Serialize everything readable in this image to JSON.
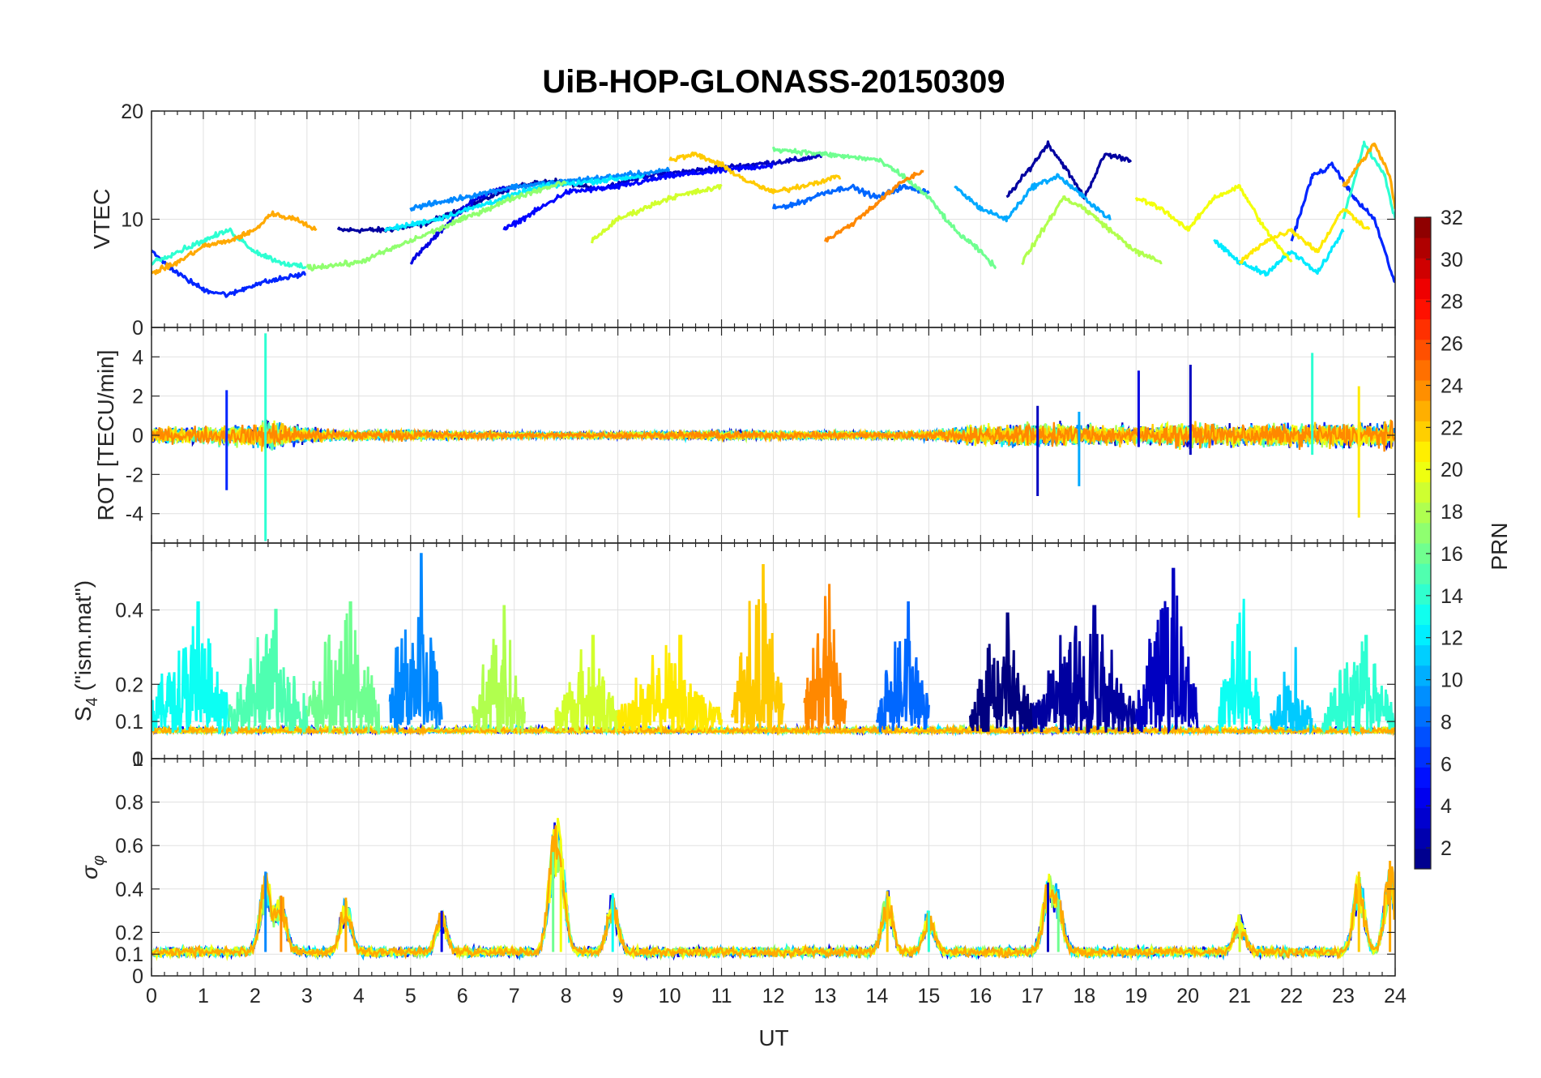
{
  "chart_data": {
    "type": "line",
    "title": "UiB-HOP-GLONASS-20150309",
    "xlabel": "UT",
    "xlim": [
      0,
      24
    ],
    "xticks": [
      "0",
      "1",
      "2",
      "3",
      "4",
      "5",
      "6",
      "7",
      "8",
      "9",
      "10",
      "11",
      "12",
      "13",
      "14",
      "15",
      "16",
      "17",
      "18",
      "19",
      "20",
      "21",
      "22",
      "23",
      "24"
    ],
    "colorbar": {
      "label": "PRN",
      "range": [
        1,
        32
      ],
      "ticks": [
        "2",
        "4",
        "6",
        "8",
        "10",
        "12",
        "14",
        "16",
        "18",
        "20",
        "22",
        "24",
        "26",
        "28",
        "30",
        "32"
      ],
      "colormap": "jet"
    },
    "panels": [
      {
        "name": "vtec",
        "ylabel": "VTEC",
        "ylim": [
          0,
          20
        ],
        "yticks": [
          "0",
          "10",
          "20"
        ],
        "series": [
          {
            "prn": 2,
            "x": [
              3.6,
              4.5,
              5.2,
              5.8,
              6.5,
              7.0,
              7.8,
              8.5
            ],
            "y": [
              9.0,
              9.0,
              9.5,
              10.5,
              12.0,
              13.0,
              13.5,
              13.0
            ]
          },
          {
            "prn": 3,
            "x": [
              8.8,
              9.5,
              10.5,
              11.5,
              12.5,
              13.0
            ],
            "y": [
              13.0,
              14.0,
              14.5,
              15.0,
              15.5,
              16.0
            ]
          },
          {
            "prn": 2,
            "x": [
              16.5,
              17.0,
              17.3,
              17.6,
              18.0,
              18.4,
              18.9
            ],
            "y": [
              12.0,
              15.0,
              17.0,
              15.0,
              12.0,
              16.0,
              15.5
            ]
          },
          {
            "prn": 4,
            "x": [
              5.0,
              5.5,
              6.0,
              6.5,
              7.0
            ],
            "y": [
              6.0,
              8.5,
              11.0,
              12.5,
              13.0
            ]
          },
          {
            "prn": 5,
            "x": [
              6.8,
              7.5,
              8.0,
              9.0,
              10.0,
              11.0,
              12.0
            ],
            "y": [
              9.0,
              11.0,
              12.5,
              13.0,
              14.0,
              14.5,
              15.0
            ]
          },
          {
            "prn": 6,
            "x": [
              0,
              0.5,
              1.0,
              1.5,
              2.0,
              2.5,
              3.0
            ],
            "y": [
              7.0,
              5.0,
              3.5,
              3.0,
              4.0,
              4.5,
              5.0
            ]
          },
          {
            "prn": 6,
            "x": [
              22.0,
              22.4,
              22.8,
              23.2,
              23.6,
              24.0
            ],
            "y": [
              8.0,
              14.0,
              15.0,
              12.0,
              10.0,
              4.0
            ]
          },
          {
            "prn": 8,
            "x": [
              12.0,
              12.5,
              13.0,
              13.5,
              14.0,
              14.5,
              15.0
            ],
            "y": [
              11.0,
              11.5,
              12.5,
              13.0,
              12.0,
              13.0,
              12.5
            ]
          },
          {
            "prn": 9,
            "x": [
              5.0,
              6.0,
              7.0,
              8.0,
              9.0,
              10.0
            ],
            "y": [
              11.0,
              12.0,
              13.0,
              13.5,
              14.0,
              14.5
            ]
          },
          {
            "prn": 10,
            "x": [
              15.5,
              16.0,
              16.5,
              17.0,
              17.5,
              18.0,
              18.5
            ],
            "y": [
              13.0,
              11.0,
              10.0,
              13.0,
              14.0,
              12.0,
              10.0
            ]
          },
          {
            "prn": 12,
            "x": [
              4.5,
              5.5,
              6.5,
              7.5,
              8.5,
              9.5
            ],
            "y": [
              9.0,
              10.0,
              11.5,
              13.0,
              13.5,
              14.0
            ]
          },
          {
            "prn": 12,
            "x": [
              20.5,
              21.0,
              21.5,
              22.0,
              22.5,
              23.0
            ],
            "y": [
              8.0,
              6.0,
              5.0,
              7.0,
              5.0,
              9.0
            ]
          },
          {
            "prn": 14,
            "x": [
              0,
              0.5,
              1.0,
              1.5,
              2.0,
              2.5,
              3.0
            ],
            "y": [
              6.0,
              7.0,
              8.0,
              9.0,
              7.0,
              6.0,
              5.5
            ]
          },
          {
            "prn": 14,
            "x": [
              23.0,
              23.4,
              23.8,
              24.0
            ],
            "y": [
              10.0,
              17.0,
              14.0,
              10.0
            ]
          },
          {
            "prn": 16,
            "x": [
              12.0,
              13.0,
              14.0,
              14.5,
              15.0,
              15.5,
              16.0,
              16.3
            ],
            "y": [
              16.5,
              16.0,
              15.5,
              14.0,
              12.0,
              9.0,
              7.0,
              5.5
            ]
          },
          {
            "prn": 17,
            "x": [
              3.0,
              4.0,
              5.0,
              6.0,
              7.0,
              8.0
            ],
            "y": [
              5.5,
              6.0,
              8.0,
              10.0,
              12.0,
              13.5
            ]
          },
          {
            "prn": 18,
            "x": [
              16.8,
              17.2,
              17.6,
              18.0,
              18.5,
              19.0,
              19.5
            ],
            "y": [
              6.0,
              9.0,
              12.0,
              11.0,
              9.0,
              7.0,
              6.0
            ]
          },
          {
            "prn": 19,
            "x": [
              8.5,
              9.0,
              9.5,
              10.0,
              10.5,
              11.0
            ],
            "y": [
              8.0,
              10.0,
              11.0,
              12.0,
              12.5,
              13.0
            ]
          },
          {
            "prn": 20,
            "x": [
              19.0,
              19.5,
              20.0,
              20.5,
              21.0,
              21.5,
              22.0
            ],
            "y": [
              12.0,
              11.0,
              9.0,
              12.0,
              13.0,
              9.0,
              6.0
            ]
          },
          {
            "prn": 21,
            "x": [
              21.0,
              21.5,
              22.0,
              22.5,
              23.0,
              23.5
            ],
            "y": [
              6.0,
              8.0,
              9.0,
              7.0,
              11.0,
              9.0
            ]
          },
          {
            "prn": 22,
            "x": [
              10.0,
              10.5,
              11.0,
              11.5,
              12.0,
              12.5,
              13.3
            ],
            "y": [
              15.5,
              16.0,
              15.0,
              13.5,
              12.5,
              13.0,
              14.0
            ]
          },
          {
            "prn": 23,
            "x": [
              0,
              0.5,
              1.0,
              1.5,
              2.0,
              2.3,
              2.8,
              3.2
            ],
            "y": [
              5.0,
              6.0,
              7.5,
              8.0,
              9.0,
              10.5,
              10.0,
              9.0
            ]
          },
          {
            "prn": 23,
            "x": [
              23.0,
              23.3,
              23.6,
              23.9,
              24.0
            ],
            "y": [
              13.0,
              15.0,
              17.0,
              14.0,
              11.0
            ]
          },
          {
            "prn": 24,
            "x": [
              13.0,
              13.5,
              14.0,
              14.5,
              14.9
            ],
            "y": [
              8.0,
              9.5,
              11.5,
              13.5,
              14.5
            ]
          }
        ]
      },
      {
        "name": "rot",
        "ylabel": "ROT [TECU/min]",
        "ylim": [
          -5.5,
          5.5
        ],
        "yticks": [
          "-4",
          "-2",
          "0",
          "2",
          "4"
        ],
        "envelope": {
          "x": [
            0,
            1,
            2,
            2.2,
            3,
            4,
            5,
            6,
            7,
            8,
            9,
            10,
            11,
            12,
            13,
            14,
            15,
            16,
            17,
            18,
            19,
            20,
            21,
            22,
            23,
            24
          ],
          "amp": [
            0.9,
            1.1,
            1.4,
            2.0,
            0.9,
            0.6,
            0.7,
            0.5,
            0.4,
            0.35,
            0.4,
            0.5,
            0.6,
            0.5,
            0.5,
            0.5,
            0.6,
            1.2,
            1.5,
            1.3,
            1.2,
            1.5,
            1.4,
            1.4,
            1.6,
            1.6
          ]
        },
        "spikes": [
          {
            "x": 2.2,
            "y": [
              -5.4,
              5.2
            ],
            "prn": 14
          },
          {
            "x": 1.45,
            "y": [
              -2.8,
              2.3
            ],
            "prn": 6
          },
          {
            "x": 17.1,
            "y": [
              -3.1,
              1.5
            ],
            "prn": 3
          },
          {
            "x": 19.05,
            "y": [
              -0.6,
              3.3
            ],
            "prn": 4
          },
          {
            "x": 20.05,
            "y": [
              -1.0,
              3.6
            ],
            "prn": 3
          },
          {
            "x": 23.3,
            "y": [
              -4.2,
              2.5
            ],
            "prn": 21
          },
          {
            "x": 22.4,
            "y": [
              -1.0,
              4.2
            ],
            "prn": 14
          },
          {
            "x": 17.9,
            "y": [
              -2.6,
              1.2
            ],
            "prn": 10
          }
        ]
      },
      {
        "name": "s4",
        "ylabel": "S4 (\"ism.mat\")",
        "ylabel_main": "S",
        "ylabel_sub": "4",
        "ylabel_rest": " (\"ism.mat\")",
        "ylim": [
          0,
          0.58
        ],
        "yticks": [
          "0",
          "0.1",
          "0.2",
          "0.4"
        ],
        "baseline": 0.07,
        "peaks": [
          {
            "x0": 0.0,
            "x1": 1.5,
            "max": 0.42,
            "prn": 13
          },
          {
            "x0": 1.5,
            "x1": 3.0,
            "max": 0.4,
            "prn": 15
          },
          {
            "x0": 3.0,
            "x1": 4.4,
            "max": 0.42,
            "prn": 16
          },
          {
            "x0": 4.6,
            "x1": 5.6,
            "max": 0.55,
            "prn": 9
          },
          {
            "x0": 6.2,
            "x1": 7.2,
            "max": 0.41,
            "prn": 18
          },
          {
            "x0": 7.8,
            "x1": 9.0,
            "max": 0.33,
            "prn": 19
          },
          {
            "x0": 9.0,
            "x1": 11.0,
            "max": 0.33,
            "prn": 21
          },
          {
            "x0": 11.2,
            "x1": 12.2,
            "max": 0.52,
            "prn": 22
          },
          {
            "x0": 12.6,
            "x1": 13.4,
            "max": 0.47,
            "prn": 24
          },
          {
            "x0": 14.0,
            "x1": 15.0,
            "max": 0.42,
            "prn": 8
          },
          {
            "x0": 15.8,
            "x1": 17.0,
            "max": 0.39,
            "prn": 1
          },
          {
            "x0": 17.0,
            "x1": 19.0,
            "max": 0.41,
            "prn": 2
          },
          {
            "x0": 19.0,
            "x1": 20.2,
            "max": 0.51,
            "prn": 3
          },
          {
            "x0": 20.6,
            "x1": 21.4,
            "max": 0.43,
            "prn": 13
          },
          {
            "x0": 21.6,
            "x1": 22.4,
            "max": 0.3,
            "prn": 11
          },
          {
            "x0": 22.6,
            "x1": 24.0,
            "max": 0.33,
            "prn": 14
          }
        ]
      },
      {
        "name": "sigma_phi",
        "ylabel": "σφ",
        "ylabel_main": "σ",
        "ylabel_sub": "φ",
        "ylim": [
          0,
          1
        ],
        "yticks": [
          "0",
          "0.1",
          "0.2",
          "0.4",
          "0.6",
          "0.8",
          "1"
        ],
        "baseline": 0.11,
        "peaks": [
          {
            "x": 2.2,
            "y": 0.48,
            "prn": 9
          },
          {
            "x": 2.5,
            "y": 0.37,
            "prn": 24
          },
          {
            "x": 3.75,
            "y": 0.36,
            "prn": 23
          },
          {
            "x": 5.6,
            "y": 0.3,
            "prn": 4
          },
          {
            "x": 7.75,
            "y": 0.57,
            "prn": 16
          },
          {
            "x": 7.9,
            "y": 0.5,
            "prn": 20
          },
          {
            "x": 8.9,
            "y": 0.38,
            "prn": 13
          },
          {
            "x": 14.2,
            "y": 0.39,
            "prn": 22
          },
          {
            "x": 15.0,
            "y": 0.3,
            "prn": 14
          },
          {
            "x": 17.3,
            "y": 0.43,
            "prn": 3
          },
          {
            "x": 17.5,
            "y": 0.35,
            "prn": 16
          },
          {
            "x": 21.0,
            "y": 0.28,
            "prn": 19
          },
          {
            "x": 23.3,
            "y": 0.48,
            "prn": 22
          },
          {
            "x": 23.9,
            "y": 0.53,
            "prn": 23
          }
        ]
      }
    ]
  }
}
